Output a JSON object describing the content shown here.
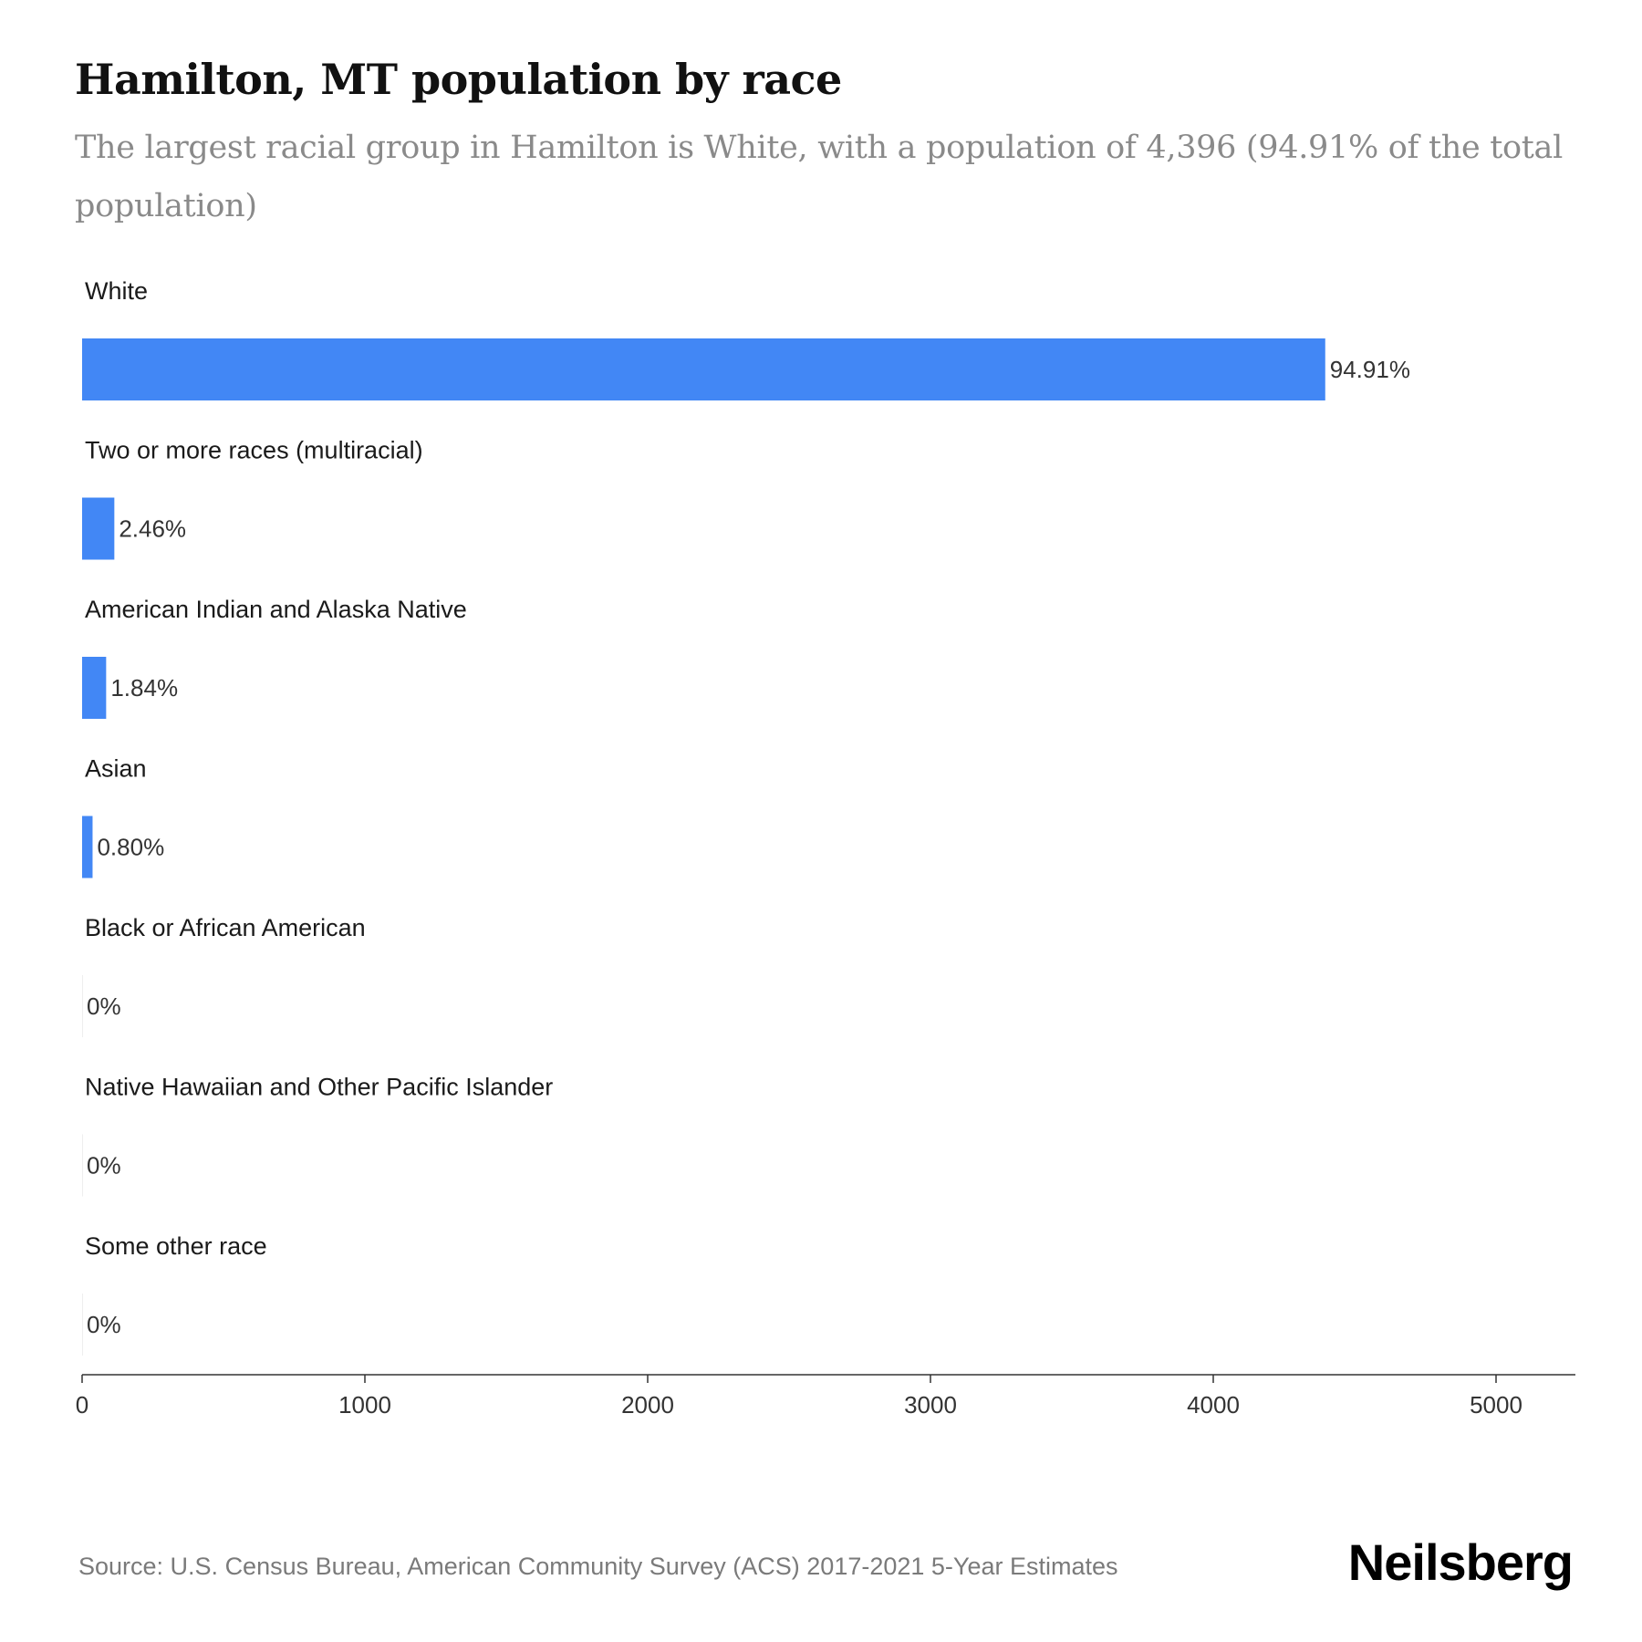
{
  "header": {
    "title": "Hamilton, MT population by race",
    "subtitle": "The largest racial group in Hamilton is White, with a population of 4,396 (94.91% of the total population)"
  },
  "chart_data": {
    "type": "bar",
    "orientation": "horizontal",
    "categories": [
      "White",
      "Two or more races (multiracial)",
      "American Indian and Alaska Native",
      "Asian",
      "Black or African American",
      "Native Hawaiian and Other Pacific Islander",
      "Some other race"
    ],
    "values": [
      4396,
      114,
      85,
      37,
      0,
      0,
      0
    ],
    "value_labels": [
      "94.91%",
      "2.46%",
      "1.84%",
      "0.80%",
      "0%",
      "0%",
      "0%"
    ],
    "x_ticks": [
      0,
      1000,
      2000,
      3000,
      4000,
      5000
    ],
    "xlim": [
      0,
      5280
    ],
    "grid": false,
    "bar_color": "#4287f5"
  },
  "footer": {
    "source": "Source: U.S. Census Bureau, American Community Survey (ACS) 2017-2021 5-Year Estimates",
    "brand": "Neilsberg"
  }
}
